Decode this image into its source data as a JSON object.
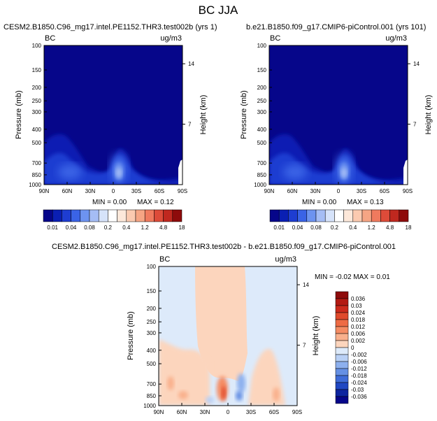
{
  "page_title": "BC JJA",
  "chart_data": [
    {
      "type": "heatmap",
      "title": "CESM2.B1850.C96_mg17.intel.PE1152.THR3.test002b (yrs 1)",
      "field_label": "BC",
      "units": "ug/m3",
      "ylabel_left": "Pressure (mb)",
      "ylabel_right": "Height (km)",
      "x_ticks": [
        "90N",
        "60N",
        "30N",
        "0",
        "30S",
        "60S",
        "90S"
      ],
      "y_ticks": [
        "100",
        "150",
        "200",
        "250",
        "300",
        "400",
        "500",
        "700",
        "850",
        "1000"
      ],
      "height_ticks": [
        "14",
        "7"
      ],
      "min_label": "MIN =  0.00",
      "max_label": "MAX =  0.12",
      "min": 0.0,
      "max": 0.12,
      "colorbar": {
        "levels": [
          "0.01",
          "0.04",
          "0.08",
          "0.2",
          "0.4",
          "1.2",
          "4.8",
          "18"
        ],
        "colors": [
          "#06068a",
          "#0a1fb3",
          "#1e3dd1",
          "#3a63e6",
          "#6d93f0",
          "#a5bdf5",
          "#d6e3fa",
          "#ffffff",
          "#fde8da",
          "#fbcab0",
          "#f6a584",
          "#ef7a5e",
          "#dd4b39",
          "#c0281f",
          "#8e0b0b"
        ]
      }
    },
    {
      "type": "heatmap",
      "title": "b.e21.B1850.f09_g17.CMIP6-piControl.001 (yrs 101)",
      "field_label": "BC",
      "units": "ug/m3",
      "ylabel_left": "Pressure (mb)",
      "ylabel_right": "Height (km)",
      "x_ticks": [
        "90N",
        "60N",
        "30N",
        "0",
        "30S",
        "60S",
        "90S"
      ],
      "y_ticks": [
        "100",
        "150",
        "200",
        "250",
        "300",
        "400",
        "500",
        "700",
        "850",
        "1000"
      ],
      "height_ticks": [
        "14",
        "7"
      ],
      "min_label": "MIN =  0.00",
      "max_label": "MAX =  0.13",
      "min": 0.0,
      "max": 0.13,
      "colorbar": {
        "levels": [
          "0.01",
          "0.04",
          "0.08",
          "0.2",
          "0.4",
          "1.2",
          "4.8",
          "18"
        ],
        "colors": [
          "#06068a",
          "#0a1fb3",
          "#1e3dd1",
          "#3a63e6",
          "#6d93f0",
          "#a5bdf5",
          "#d6e3fa",
          "#ffffff",
          "#fde8da",
          "#fbcab0",
          "#f6a584",
          "#ef7a5e",
          "#dd4b39",
          "#c0281f",
          "#8e0b0b"
        ]
      }
    },
    {
      "type": "heatmap",
      "title": "CESM2.B1850.C96_mg17.intel.PE1152.THR3.test002b - b.e21.B1850.f09_g17.CMIP6-piControl.001",
      "field_label": "BC",
      "units": "ug/m3",
      "ylabel_left": "Pressure (mb)",
      "ylabel_right": "Height (km)",
      "x_ticks": [
        "90N",
        "60N",
        "30N",
        "0",
        "30S",
        "60S",
        "90S"
      ],
      "y_ticks": [
        "100",
        "150",
        "200",
        "250",
        "300",
        "400",
        "500",
        "700",
        "850",
        "1000"
      ],
      "height_ticks": [
        "14",
        "7"
      ],
      "minmax_label": "MIN = -0.02  MAX =  0.01",
      "min": -0.02,
      "max": 0.01,
      "colorbar": {
        "levels": [
          "0.036",
          "0.03",
          "0.024",
          "0.018",
          "0.012",
          "0.006",
          "0.002",
          "0",
          "-0.002",
          "-0.006",
          "-0.012",
          "-0.018",
          "-0.024",
          "-0.03",
          "-0.036"
        ],
        "colors": [
          "#8e0b0b",
          "#b31a12",
          "#cc2a1c",
          "#e04a2c",
          "#ee6b44",
          "#f58c63",
          "#f9b08c",
          "#fcd5bd",
          "#ddeafa",
          "#b9d0f5",
          "#8db0ee",
          "#6590e4",
          "#3f6cd8",
          "#2047c2",
          "#0d25a0",
          "#06068a"
        ]
      }
    }
  ]
}
